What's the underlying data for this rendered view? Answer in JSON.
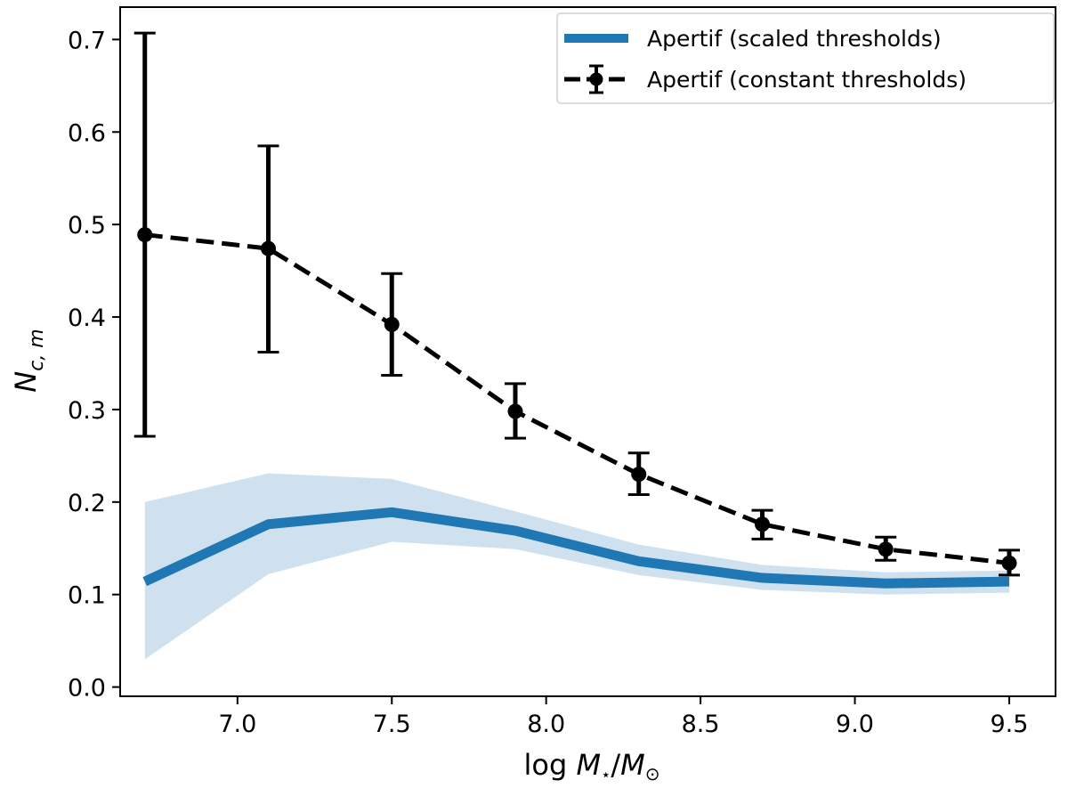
{
  "chart_data": {
    "type": "line",
    "title": "",
    "xlabel_parts": [
      "log ",
      "M",
      "⋆",
      "/",
      "M",
      "⊙"
    ],
    "ylabel_parts": [
      "N",
      "c, m"
    ],
    "xlim": [
      6.62,
      9.65
    ],
    "ylim": [
      -0.01,
      0.735
    ],
    "xticks": [
      7.0,
      7.5,
      8.0,
      8.5,
      9.0,
      9.5
    ],
    "xtick_labels": [
      "7.0",
      "7.5",
      "8.0",
      "8.5",
      "9.0",
      "9.5"
    ],
    "yticks": [
      0.0,
      0.1,
      0.2,
      0.3,
      0.4,
      0.5,
      0.6,
      0.7
    ],
    "ytick_labels": [
      "0.0",
      "0.1",
      "0.2",
      "0.3",
      "0.4",
      "0.5",
      "0.6",
      "0.7"
    ],
    "legend_position": "upper right",
    "series": [
      {
        "name": "Apertif (scaled thresholds)",
        "style": "solid-thick",
        "color": "#1f77b4",
        "band_color": "#cfe1ef",
        "x": [
          6.7,
          7.1,
          7.5,
          7.9,
          8.3,
          8.7,
          9.1,
          9.5
        ],
        "y": [
          0.114,
          0.176,
          0.189,
          0.169,
          0.136,
          0.118,
          0.112,
          0.114
        ],
        "y_lower": [
          0.03,
          0.122,
          0.157,
          0.149,
          0.121,
          0.105,
          0.1,
          0.102
        ],
        "y_upper": [
          0.2,
          0.231,
          0.225,
          0.19,
          0.154,
          0.132,
          0.124,
          0.126
        ]
      },
      {
        "name": "Apertif (constant thresholds)",
        "style": "dashed-errorbar",
        "color": "#000000",
        "x": [
          6.7,
          7.1,
          7.5,
          7.9,
          8.3,
          8.7,
          9.1,
          9.5
        ],
        "y": [
          0.489,
          0.474,
          0.392,
          0.298,
          0.23,
          0.176,
          0.149,
          0.134
        ],
        "err_lower": [
          0.271,
          0.362,
          0.337,
          0.269,
          0.208,
          0.16,
          0.137,
          0.121
        ],
        "err_upper": [
          0.707,
          0.585,
          0.447,
          0.328,
          0.253,
          0.191,
          0.162,
          0.148
        ]
      }
    ]
  }
}
